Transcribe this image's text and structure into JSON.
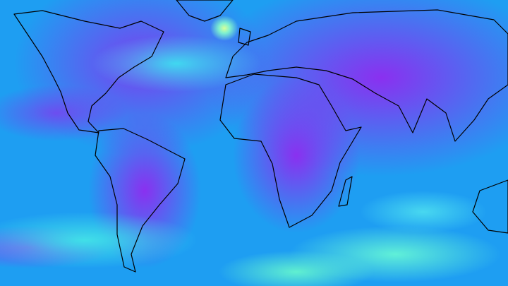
{
  "map": {
    "type": "global wind speed field",
    "projection": "equirectangular",
    "palette": [
      "#1e9ef2",
      "#40d8f0",
      "#7ef0d0",
      "#d8ff9a",
      "#8a30f0"
    ],
    "coastline_color": "#000000"
  }
}
